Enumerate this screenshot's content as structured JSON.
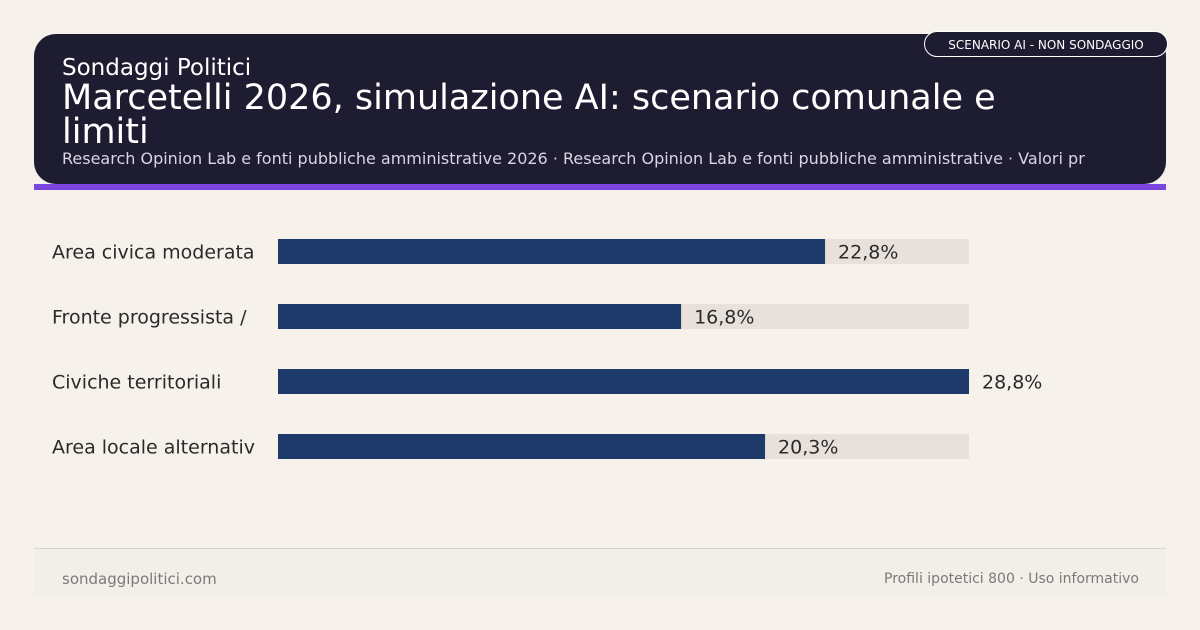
{
  "header": {
    "site_label": "Sondaggi Politici",
    "title": "Marcetelli 2026, simulazione AI: scenario comunale e limiti",
    "subtitle": "Research Opinion Lab e fonti pubbliche amministrative 2026 · Research Opinion Lab e fonti pubbliche amministrative · Valori pr",
    "badge": "SCENARIO AI - NON SONDAGGIO"
  },
  "colors": {
    "header_bg": "#1d1c30",
    "accent": "#7a45e0",
    "bar": "#1e3a6a",
    "track": "#e8e1db",
    "page_bg": "#f6f2eb"
  },
  "chart_data": {
    "type": "bar",
    "orientation": "horizontal",
    "categories": [
      "Area civica moderata",
      "Fronte progressista /",
      "Civiche territoriali",
      "Area locale alternativ"
    ],
    "values": [
      22.8,
      16.8,
      28.8,
      20.3
    ],
    "value_labels": [
      "22,8%",
      "16,8%",
      "28,8%",
      "20,3%"
    ],
    "xlim": [
      0,
      28.8
    ],
    "grid": false,
    "legend": "none"
  },
  "footer": {
    "left": "sondaggipolitici.com",
    "right": "Profili ipotetici 800 · Uso informativo"
  }
}
